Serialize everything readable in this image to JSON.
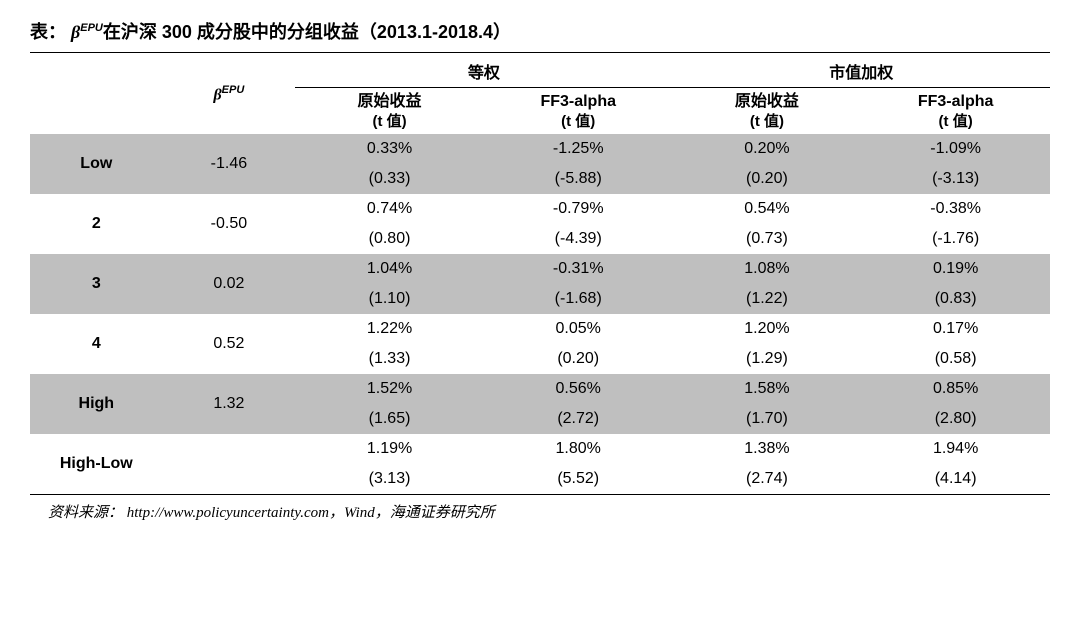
{
  "title_prefix": "表：",
  "title_beta": "β",
  "title_sup": "EPU",
  "title_rest": "在沪深 300 成分股中的分组收益（2013.1-2018.4）",
  "header": {
    "beta": "β",
    "beta_sup": "EPU",
    "group1": "等权",
    "group2": "市值加权",
    "col_raw": "原始收益",
    "col_ff3": "FF3-alpha",
    "tval": "(t 值)"
  },
  "rows": [
    {
      "label": "Low",
      "beta": "-1.46",
      "val": [
        "0.33%",
        "-1.25%",
        "0.20%",
        "-1.09%"
      ],
      "t": [
        "(0.33)",
        "(-5.88)",
        "(0.20)",
        "(-3.13)"
      ],
      "shade": true
    },
    {
      "label": "2",
      "beta": "-0.50",
      "val": [
        "0.74%",
        "-0.79%",
        "0.54%",
        "-0.38%"
      ],
      "t": [
        "(0.80)",
        "(-4.39)",
        "(0.73)",
        "(-1.76)"
      ],
      "shade": false
    },
    {
      "label": "3",
      "beta": "0.02",
      "val": [
        "1.04%",
        "-0.31%",
        "1.08%",
        "0.19%"
      ],
      "t": [
        "(1.10)",
        "(-1.68)",
        "(1.22)",
        "(0.83)"
      ],
      "shade": true
    },
    {
      "label": "4",
      "beta": "0.52",
      "val": [
        "1.22%",
        "0.05%",
        "1.20%",
        "0.17%"
      ],
      "t": [
        "(1.33)",
        "(0.20)",
        "(1.29)",
        "(0.58)"
      ],
      "shade": false
    },
    {
      "label": "High",
      "beta": "1.32",
      "val": [
        "1.52%",
        "0.56%",
        "1.58%",
        "0.85%"
      ],
      "t": [
        "(1.65)",
        "(2.72)",
        "(1.70)",
        "(2.80)"
      ],
      "shade": true
    },
    {
      "label": "High-Low",
      "beta": "",
      "val": [
        "1.19%",
        "1.80%",
        "1.38%",
        "1.94%"
      ],
      "t": [
        "(3.13)",
        "(5.52)",
        "(2.74)",
        "(4.14)"
      ],
      "shade": false
    }
  ],
  "source": "资料来源：  http://www.policyuncertainty.com，Wind，海通证券研究所"
}
